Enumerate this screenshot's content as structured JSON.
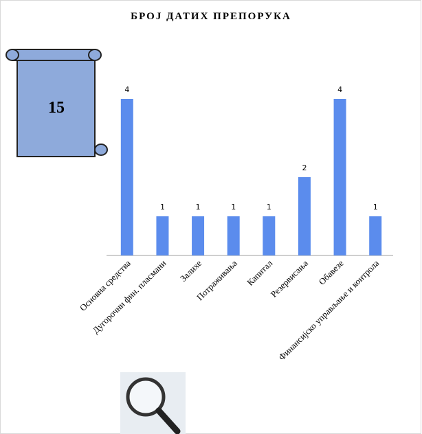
{
  "chart_data": {
    "type": "bar",
    "title": "БРОЈ ДАТИХ ПРЕПОРУКА",
    "annotation": "15",
    "categories": [
      "Основна средства",
      "Дугорочни фин. пласмани",
      "Залихе",
      "Потраживања",
      "Капитал",
      "Резервисања",
      "Обавезе",
      "Финансијско управљање и контрола"
    ],
    "values": [
      4,
      1,
      1,
      1,
      1,
      2,
      4,
      1
    ],
    "color": "#5b8ced"
  }
}
